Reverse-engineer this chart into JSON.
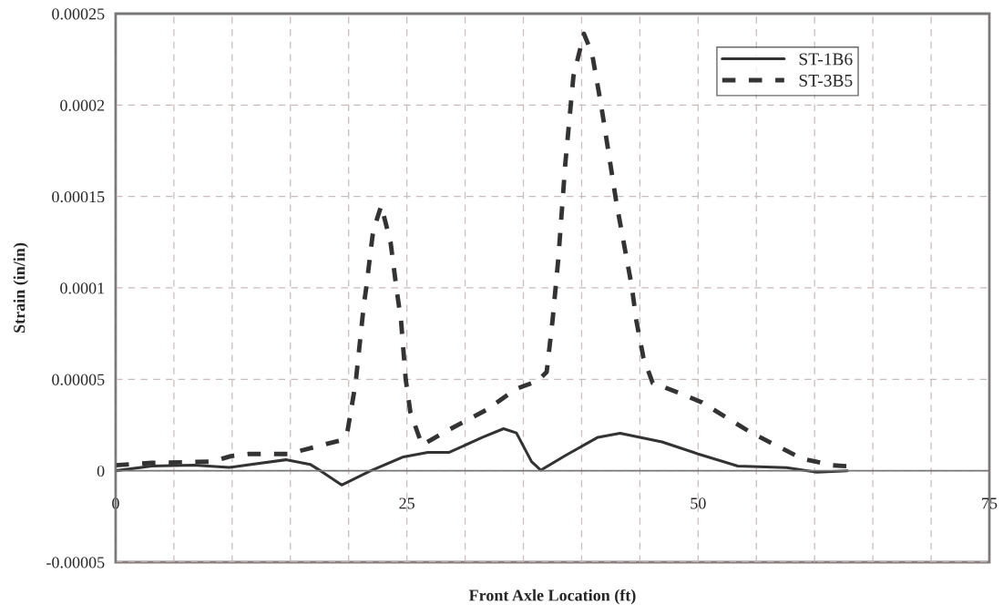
{
  "chart_data": {
    "type": "line",
    "xlabel": "Front Axle Location (ft)",
    "ylabel": "Strain (in/in)",
    "xlim": [
      0,
      75
    ],
    "xticks": [
      0,
      {
        "value": 5,
        "label": null
      },
      {
        "value": 10,
        "label": null
      },
      {
        "value": 15,
        "label": null
      },
      {
        "value": 20,
        "label": null
      },
      25,
      {
        "value": 30,
        "label": null
      },
      {
        "value": 35,
        "label": null
      },
      {
        "value": 40,
        "label": null
      },
      {
        "value": 45,
        "label": null
      },
      50,
      {
        "value": 55,
        "label": null
      },
      {
        "value": 60,
        "label": null
      },
      {
        "value": 65,
        "label": null
      },
      {
        "value": 70,
        "label": null
      },
      75
    ],
    "ylim": [
      -5e-05,
      0.00025
    ],
    "yticks": [
      {
        "value": -5e-05,
        "label": "-0.00005"
      },
      0,
      {
        "value": 5e-05,
        "label": "0.00005"
      },
      0.0001,
      0.00015,
      0.0002,
      0.00025
    ],
    "grid": true,
    "legend": "top right",
    "marker": "none",
    "series": [
      {
        "name": "ST-1B6",
        "color": "#333333",
        "line_style": "solid",
        "x": [
          0,
          3.1,
          6.7,
          9.75,
          14.6,
          16.7,
          17.7,
          19.4,
          21.9,
          24.7,
          26.8,
          28.6,
          31.5,
          33.3,
          34.4,
          35.7,
          36.5,
          38.6,
          41.4,
          43.3,
          46.9,
          50,
          53.4,
          57.6,
          60.2,
          62.8
        ],
        "values": [
          0,
          2.6e-06,
          3.1e-06,
          1.8e-06,
          6e-06,
          3.5e-06,
          -5e-07,
          -7.8e-06,
          0,
          7.6e-06,
          1e-05,
          1e-05,
          1.83e-05,
          2.3e-05,
          2.07e-05,
          5e-06,
          3e-07,
          8.3e-06,
          1.83e-05,
          2.05e-05,
          1.58e-05,
          9.2e-06,
          2.6e-06,
          1.7e-06,
          -8e-07,
          0
        ]
      },
      {
        "name": "ST-3B5",
        "color": "#333333",
        "line_style": "dashed",
        "x": [
          0,
          3.1,
          8.3,
          9.9,
          11.4,
          14.8,
          19.3,
          19.9,
          20.6,
          21.3,
          21.5,
          22.1,
          22.8,
          23.6,
          24.1,
          24.5,
          24.9,
          25.3,
          26.3,
          28.6,
          31.8,
          34.4,
          36.2,
          37,
          37.5,
          38,
          38.6,
          39.3,
          40.2,
          40.9,
          41.7,
          43,
          44.3,
          44.7,
          45.3,
          46.1,
          48.4,
          50.3,
          54.5,
          58.9,
          61.5,
          62.8
        ],
        "values": [
          3e-06,
          4.3e-06,
          5e-06,
          8e-06,
          9.2e-06,
          9.2e-06,
          1.66e-05,
          2.16e-05,
          4.8e-05,
          9.05e-05,
          9.96e-05,
          0.000131,
          0.000145,
          0.000125,
          0.0001,
          8.2e-05,
          5e-05,
          3.2e-05,
          1.41e-05,
          2.24e-05,
          3.32e-05,
          4.48e-05,
          4.9e-05,
          5.4e-05,
          8.2e-05,
          0.000116,
          0.000168,
          0.000216,
          0.000239,
          0.000228,
          0.000199,
          0.000146,
          0.000101,
          8.2e-05,
          6.2e-05,
          4.8e-05,
          4.25e-05,
          3.75e-05,
          2.1e-05,
          6.7e-06,
          3e-06,
          2.5e-06
        ]
      }
    ]
  }
}
